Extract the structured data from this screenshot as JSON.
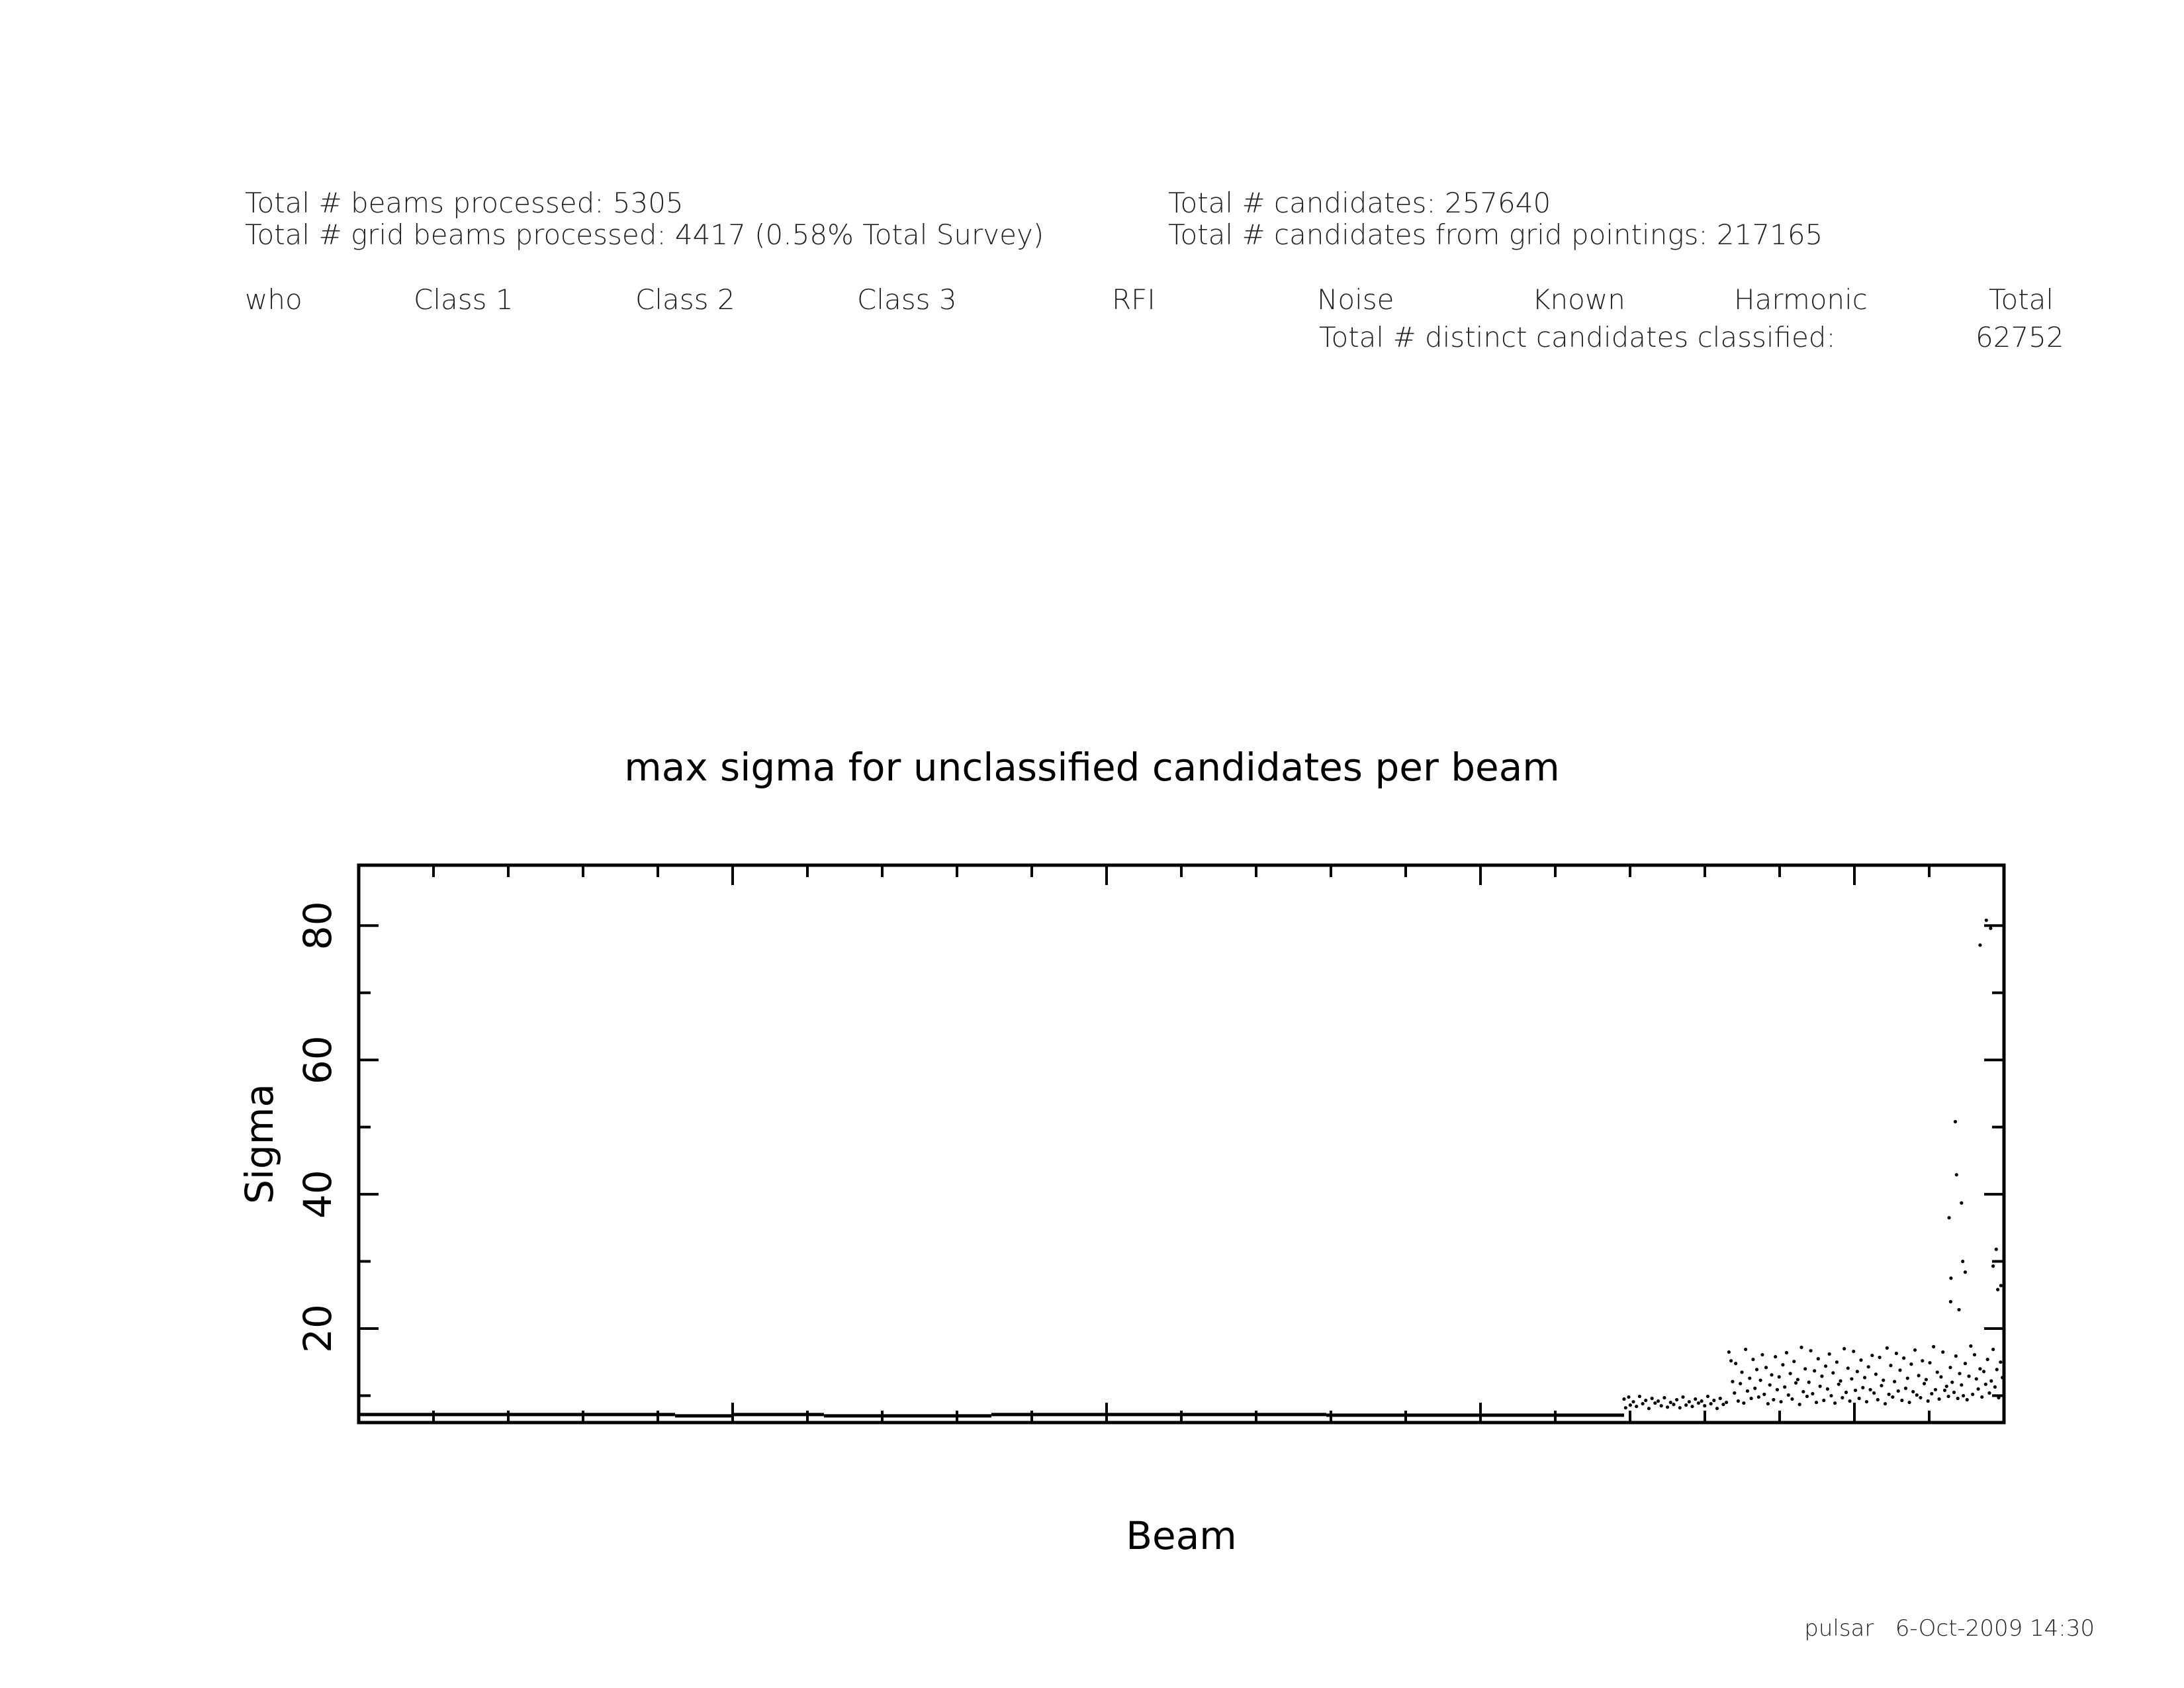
{
  "summary": {
    "beams_processed": "Total # beams processed: 5305",
    "grid_beams_processed": "Total # grid beams processed: 4417 (0.58% Total Survey)",
    "candidates": "Total # candidates: 257640",
    "grid_candidates": "Total # candidates from grid pointings: 217165"
  },
  "classification_table": {
    "columns": [
      "who",
      "Class 1",
      "Class 2",
      "Class 3",
      "RFI",
      "Noise",
      "Known",
      "Harmonic",
      "Total"
    ],
    "distinct_label": "Total # distinct candidates classified:",
    "distinct_value": "62752"
  },
  "footer": "pulsar   6-Oct-2009 14:30",
  "chart_data": {
    "type": "scatter",
    "title": "max sigma for unclassified candidates per beam",
    "xlabel": "Beam",
    "ylabel": "Sigma",
    "ylim": [
      6,
      89
    ],
    "xlim": [
      0,
      5305
    ],
    "y_ticks": [
      20,
      40,
      60,
      80
    ],
    "x_tick_labels": false,
    "grid": false,
    "series": [
      {
        "points": [
          [
            4080,
            9.5
          ],
          [
            4085,
            8.2
          ],
          [
            4095,
            9.8
          ],
          [
            4100,
            8.6
          ],
          [
            4110,
            9.1
          ],
          [
            4120,
            8.4
          ],
          [
            4130,
            9.9
          ],
          [
            4140,
            8.8
          ],
          [
            4150,
            9.3
          ],
          [
            4160,
            8.1
          ],
          [
            4170,
            9.6
          ],
          [
            4180,
            8.9
          ],
          [
            4190,
            9.2
          ],
          [
            4200,
            8.5
          ],
          [
            4210,
            9.7
          ],
          [
            4220,
            8.3
          ],
          [
            4230,
            9.0
          ],
          [
            4240,
            8.7
          ],
          [
            4250,
            9.4
          ],
          [
            4260,
            8.2
          ],
          [
            4270,
            9.8
          ],
          [
            4280,
            8.6
          ],
          [
            4290,
            9.1
          ],
          [
            4300,
            8.4
          ],
          [
            4310,
            9.5
          ],
          [
            4320,
            8.9
          ],
          [
            4330,
            9.2
          ],
          [
            4340,
            8.5
          ],
          [
            4350,
            9.9
          ],
          [
            4360,
            8.8
          ],
          [
            4370,
            9.3
          ],
          [
            4380,
            8.1
          ],
          [
            4390,
            9.6
          ],
          [
            4400,
            8.7
          ],
          [
            4410,
            9.0
          ],
          [
            4418,
            16.5
          ],
          [
            4425,
            15.2
          ],
          [
            4430,
            12.1
          ],
          [
            4436,
            10.4
          ],
          [
            4440,
            14.8
          ],
          [
            4448,
            9.2
          ],
          [
            4455,
            11.8
          ],
          [
            4460,
            13.5
          ],
          [
            4466,
            8.9
          ],
          [
            4472,
            16.9
          ],
          [
            4478,
            10.7
          ],
          [
            4485,
            12.6
          ],
          [
            4490,
            9.6
          ],
          [
            4496,
            15.4
          ],
          [
            4502,
            11.1
          ],
          [
            4508,
            13.9
          ],
          [
            4514,
            9.8
          ],
          [
            4520,
            12.3
          ],
          [
            4526,
            16.1
          ],
          [
            4532,
            10.2
          ],
          [
            4538,
            14.2
          ],
          [
            4544,
            8.8
          ],
          [
            4550,
            11.6
          ],
          [
            4556,
            13.1
          ],
          [
            4562,
            9.4
          ],
          [
            4568,
            15.8
          ],
          [
            4574,
            10.9
          ],
          [
            4580,
            12.8
          ],
          [
            4586,
            9.1
          ],
          [
            4592,
            14.6
          ],
          [
            4598,
            11.3
          ],
          [
            4604,
            16.4
          ],
          [
            4610,
            10.1
          ],
          [
            4616,
            13.3
          ],
          [
            4622,
            9.5
          ],
          [
            4628,
            15.1
          ],
          [
            4634,
            11.9
          ],
          [
            4640,
            12.4
          ],
          [
            4646,
            8.7
          ],
          [
            4652,
            17.2
          ],
          [
            4658,
            10.6
          ],
          [
            4664,
            14.0
          ],
          [
            4670,
            9.9
          ],
          [
            4676,
            12.0
          ],
          [
            4682,
            16.7
          ],
          [
            4688,
            10.3
          ],
          [
            4694,
            13.7
          ],
          [
            4700,
            9.0
          ],
          [
            4706,
            15.5
          ],
          [
            4712,
            11.4
          ],
          [
            4718,
            12.9
          ],
          [
            4724,
            9.3
          ],
          [
            4730,
            14.4
          ],
          [
            4736,
            11.0
          ],
          [
            4742,
            16.2
          ],
          [
            4748,
            10.0
          ],
          [
            4754,
            13.4
          ],
          [
            4760,
            8.9
          ],
          [
            4766,
            15.0
          ],
          [
            4772,
            11.7
          ],
          [
            4778,
            12.2
          ],
          [
            4784,
            9.7
          ],
          [
            4790,
            17.0
          ],
          [
            4796,
            10.5
          ],
          [
            4802,
            14.1
          ],
          [
            4808,
            9.2
          ],
          [
            4814,
            12.5
          ],
          [
            4820,
            16.6
          ],
          [
            4826,
            10.8
          ],
          [
            4832,
            13.6
          ],
          [
            4838,
            9.6
          ],
          [
            4844,
            15.3
          ],
          [
            4850,
            11.2
          ],
          [
            4856,
            12.7
          ],
          [
            4862,
            9.1
          ],
          [
            4868,
            14.3
          ],
          [
            4874,
            10.9
          ],
          [
            4880,
            16.0
          ],
          [
            4886,
            10.4
          ],
          [
            4892,
            13.2
          ],
          [
            4898,
            9.4
          ],
          [
            4904,
            15.7
          ],
          [
            4910,
            11.5
          ],
          [
            4916,
            12.3
          ],
          [
            4922,
            8.8
          ],
          [
            4928,
            17.1
          ],
          [
            4934,
            10.2
          ],
          [
            4940,
            14.5
          ],
          [
            4946,
            9.8
          ],
          [
            4952,
            12.1
          ],
          [
            4958,
            16.3
          ],
          [
            4964,
            10.7
          ],
          [
            4970,
            13.8
          ],
          [
            4976,
            9.3
          ],
          [
            4982,
            15.6
          ],
          [
            4988,
            11.1
          ],
          [
            4994,
            12.6
          ],
          [
            5000,
            9.0
          ],
          [
            5006,
            14.7
          ],
          [
            5012,
            10.6
          ],
          [
            5018,
            16.8
          ],
          [
            5024,
            10.1
          ],
          [
            5030,
            13.0
          ],
          [
            5036,
            9.7
          ],
          [
            5042,
            15.2
          ],
          [
            5048,
            11.8
          ],
          [
            5054,
            12.4
          ],
          [
            5060,
            9.2
          ],
          [
            5066,
            14.9
          ],
          [
            5072,
            10.3
          ],
          [
            5078,
            17.3
          ],
          [
            5084,
            10.9
          ],
          [
            5090,
            13.5
          ],
          [
            5096,
            9.5
          ],
          [
            5102,
            12.8
          ],
          [
            5108,
            16.5
          ],
          [
            5114,
            10.8
          ],
          [
            5120,
            11.4
          ],
          [
            5126,
            9.9
          ],
          [
            5132,
            14.2
          ],
          [
            5138,
            12.0
          ],
          [
            5144,
            10.5
          ],
          [
            5150,
            15.9
          ],
          [
            5156,
            9.6
          ],
          [
            5162,
            13.3
          ],
          [
            5168,
            11.6
          ],
          [
            5174,
            10.0
          ],
          [
            5180,
            14.8
          ],
          [
            5186,
            9.4
          ],
          [
            5192,
            12.9
          ],
          [
            5198,
            17.4
          ],
          [
            5204,
            10.2
          ],
          [
            5210,
            16.1
          ],
          [
            5216,
            12.5
          ],
          [
            5222,
            11.0
          ],
          [
            5228,
            14.0
          ],
          [
            5234,
            9.8
          ],
          [
            5240,
            13.6
          ],
          [
            5246,
            11.7
          ],
          [
            5252,
            15.4
          ],
          [
            5258,
            10.4
          ],
          [
            5264,
            12.2
          ],
          [
            5270,
            16.9
          ],
          [
            5276,
            11.3
          ],
          [
            5282,
            13.9
          ],
          [
            5288,
            9.7
          ],
          [
            5294,
            15.0
          ],
          [
            5300,
            12.7
          ],
          [
            5128,
            36.5
          ],
          [
            5133,
            24.0
          ],
          [
            5134,
            27.5
          ],
          [
            5148,
            50.8
          ],
          [
            5152,
            42.9
          ],
          [
            5160,
            22.8
          ],
          [
            5168,
            38.7
          ],
          [
            5172,
            30.0
          ],
          [
            5180,
            28.4
          ],
          [
            5228,
            77.1
          ],
          [
            5248,
            80.8
          ],
          [
            5262,
            79.6
          ],
          [
            5270,
            29.3
          ],
          [
            5280,
            31.8
          ],
          [
            5285,
            25.8
          ],
          [
            5295,
            26.4
          ]
        ]
      }
    ],
    "baseline": {
      "segments": [
        [
          0,
          1020,
          7.2
        ],
        [
          1020,
          1210,
          7.0
        ],
        [
          1210,
          1500,
          7.2
        ],
        [
          1500,
          2040,
          7.0
        ],
        [
          2040,
          3120,
          7.2
        ],
        [
          3120,
          4080,
          7.1
        ]
      ]
    }
  }
}
